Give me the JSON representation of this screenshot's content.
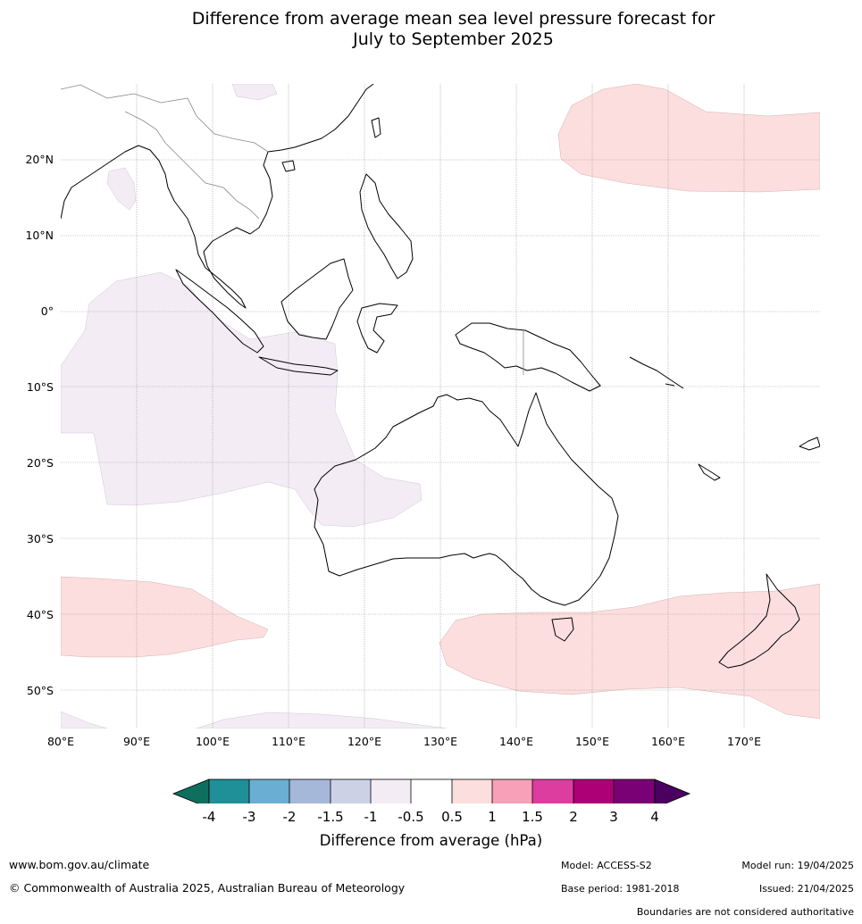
{
  "title": {
    "line1": "Difference from average mean sea level pressure forecast for",
    "line2": "July to September 2025"
  },
  "map": {
    "latitude_labels": [
      "20°N",
      "10°N",
      "0°",
      "10°S",
      "20°S",
      "30°S",
      "40°S",
      "50°S"
    ],
    "longitude_labels": [
      "80°E",
      "90°E",
      "100°E",
      "110°E",
      "120°E",
      "130°E",
      "140°E",
      "150°E",
      "160°E",
      "170°E"
    ],
    "extent": {
      "lon": [
        80,
        180
      ],
      "lat": [
        -55,
        30
      ]
    },
    "gridlines": true,
    "anomaly_regions": [
      {
        "name": "north-pacific-positive",
        "category": "0.5 to 1",
        "color": "#fddede"
      },
      {
        "name": "south-indian-positive",
        "category": "0.5 to 1",
        "color": "#fddede"
      },
      {
        "name": "tasman-southern-positive",
        "category": "0.5 to 1",
        "color": "#fddede"
      },
      {
        "name": "eastern-indian-negative",
        "category": "-1 to -0.5",
        "color": "#f3ecf5"
      },
      {
        "name": "south-china-sea-negative",
        "category": "-1 to -0.5",
        "color": "#f3ecf5"
      },
      {
        "name": "bay-of-bengal-negative",
        "category": "-1 to -0.5",
        "color": "#f3ecf5"
      },
      {
        "name": "far-south-negative",
        "category": "-1 to -0.5",
        "color": "#f3ecf5"
      }
    ]
  },
  "colorbar": {
    "tick_labels": [
      "-4",
      "-3",
      "-2",
      "-1.5",
      "-1",
      "-0.5",
      "0.5",
      "1",
      "1.5",
      "2",
      "3",
      "4"
    ],
    "colors": [
      "#0f6f5f",
      "#1f8f98",
      "#6aaed3",
      "#a5b8da",
      "#cdd1e6",
      "#f3ecf5",
      "#ffffff",
      "#fddede",
      "#f7a0b8",
      "#dd3d9e",
      "#ad0076",
      "#7a0075",
      "#4b005f"
    ],
    "title": "Difference from average (hPa)"
  },
  "footer": {
    "website": "www.bom.gov.au/climate",
    "copyright": "© Commonwealth of Australia 2025, Australian Bureau of Meteorology",
    "model": "Model: ACCESS-S2",
    "base_period": "Base period: 1981-2018",
    "model_run": "Model run: 19/04/2025",
    "issued": "Issued: 21/04/2025",
    "disclaimer": "Boundaries are not considered authoritative"
  }
}
